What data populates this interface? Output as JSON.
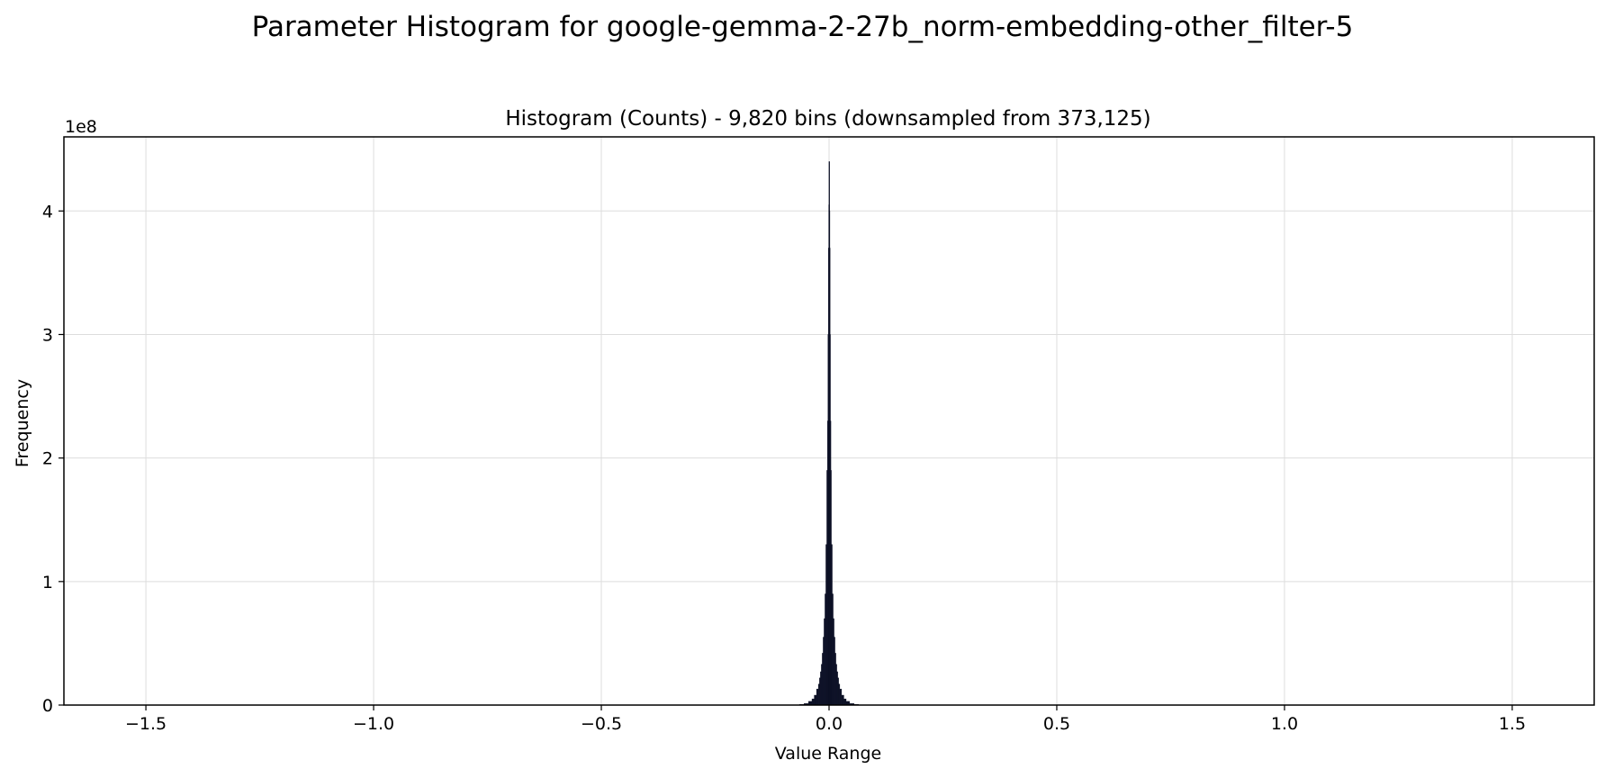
{
  "figure": {
    "suptitle": "Parameter Histogram for google-gemma-2-27b_norm-embedding-other_filter-5"
  },
  "chart_data": {
    "type": "bar",
    "title": "Histogram (Counts) - 9,820 bins (downsampled from 373,125)",
    "xlabel": "Value Range",
    "ylabel": "Frequency",
    "y_offset_label": "1e8",
    "xlim": [
      -1.68,
      1.68
    ],
    "ylim": [
      0,
      4.6
    ],
    "y_scale_multiplier": 100000000,
    "grid": true,
    "legend": "none",
    "x_ticks": [
      {
        "value": -1.5,
        "label": "−1.5"
      },
      {
        "value": -1.0,
        "label": "−1.0"
      },
      {
        "value": -0.5,
        "label": "−0.5"
      },
      {
        "value": 0.0,
        "label": "0.0"
      },
      {
        "value": 0.5,
        "label": "0.5"
      },
      {
        "value": 1.0,
        "label": "1.0"
      },
      {
        "value": 1.5,
        "label": "1.5"
      }
    ],
    "y_ticks": [
      {
        "value": 0,
        "label": "0"
      },
      {
        "value": 1,
        "label": "1"
      },
      {
        "value": 2,
        "label": "2"
      },
      {
        "value": 3,
        "label": "3"
      },
      {
        "value": 4,
        "label": "4"
      }
    ],
    "bar_color": "#0d1126",
    "bars": [
      {
        "x": -0.07,
        "y": 0.002
      },
      {
        "x": -0.06,
        "y": 0.005
      },
      {
        "x": -0.05,
        "y": 0.012
      },
      {
        "x": -0.04,
        "y": 0.03
      },
      {
        "x": -0.035,
        "y": 0.05
      },
      {
        "x": -0.03,
        "y": 0.08
      },
      {
        "x": -0.025,
        "y": 0.13
      },
      {
        "x": -0.022,
        "y": 0.17
      },
      {
        "x": -0.02,
        "y": 0.22
      },
      {
        "x": -0.018,
        "y": 0.27
      },
      {
        "x": -0.016,
        "y": 0.33
      },
      {
        "x": -0.014,
        "y": 0.42
      },
      {
        "x": -0.012,
        "y": 0.55
      },
      {
        "x": -0.01,
        "y": 0.7
      },
      {
        "x": -0.008,
        "y": 0.9
      },
      {
        "x": -0.006,
        "y": 1.3
      },
      {
        "x": -0.004,
        "y": 1.9
      },
      {
        "x": -0.003,
        "y": 2.3
      },
      {
        "x": -0.002,
        "y": 3.0
      },
      {
        "x": -0.001,
        "y": 3.7
      },
      {
        "x": -0.0005,
        "y": 4.05
      },
      {
        "x": 0.0,
        "y": 4.4
      },
      {
        "x": 0.0005,
        "y": 4.0
      },
      {
        "x": 0.001,
        "y": 3.7
      },
      {
        "x": 0.002,
        "y": 3.0
      },
      {
        "x": 0.003,
        "y": 2.3
      },
      {
        "x": 0.004,
        "y": 1.9
      },
      {
        "x": 0.006,
        "y": 1.3
      },
      {
        "x": 0.008,
        "y": 0.9
      },
      {
        "x": 0.01,
        "y": 0.7
      },
      {
        "x": 0.012,
        "y": 0.55
      },
      {
        "x": 0.014,
        "y": 0.42
      },
      {
        "x": 0.016,
        "y": 0.33
      },
      {
        "x": 0.018,
        "y": 0.27
      },
      {
        "x": 0.02,
        "y": 0.22
      },
      {
        "x": 0.022,
        "y": 0.17
      },
      {
        "x": 0.025,
        "y": 0.13
      },
      {
        "x": 0.03,
        "y": 0.08
      },
      {
        "x": 0.035,
        "y": 0.05
      },
      {
        "x": 0.04,
        "y": 0.03
      },
      {
        "x": 0.05,
        "y": 0.012
      },
      {
        "x": 0.06,
        "y": 0.005
      },
      {
        "x": 0.07,
        "y": 0.002
      }
    ]
  }
}
